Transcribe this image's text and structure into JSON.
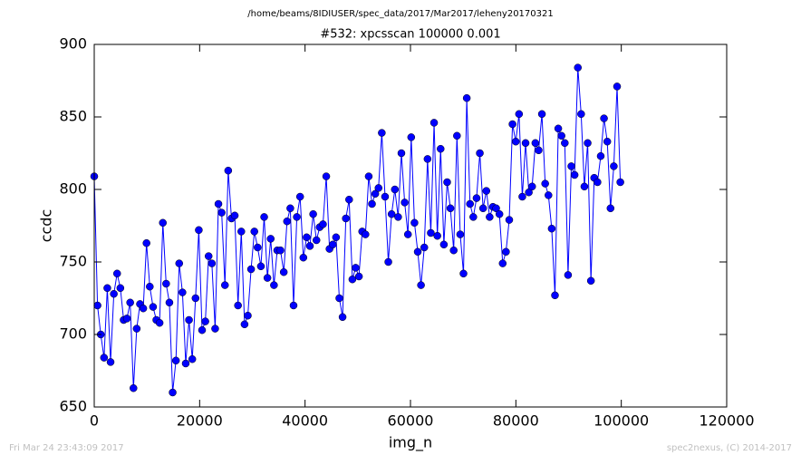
{
  "chart_data": {
    "type": "line",
    "suptitle": "/home/beams/8IDIUSER/spec_data/2017/Mar2017/leheny20170321",
    "title": "#532: xpcsscan 100000 0.001",
    "x_label": "img_n",
    "y_label": "ccdc",
    "footer_left": "Fri Mar 24 23:43:09 2017",
    "footer_right": "spec2nexus, (C) 2014-2017",
    "xlim": [
      0,
      120000
    ],
    "xticks": [
      0,
      20000,
      40000,
      60000,
      80000,
      100000,
      120000
    ],
    "ylim": [
      650,
      900
    ],
    "yticks": [
      650,
      700,
      750,
      800,
      850,
      900
    ],
    "x": [
      0,
      620,
      1240,
      1860,
      2480,
      3100,
      3720,
      4340,
      4960,
      5580,
      6200,
      6820,
      7440,
      8060,
      8680,
      9300,
      9920,
      10540,
      11160,
      11780,
      12400,
      13020,
      13640,
      14260,
      14880,
      15500,
      16120,
      16740,
      17360,
      17980,
      18600,
      19220,
      19840,
      20460,
      21080,
      21700,
      22320,
      22940,
      23560,
      24180,
      24800,
      25420,
      26040,
      26660,
      27280,
      27900,
      28520,
      29140,
      29760,
      30380,
      31000,
      31620,
      32240,
      32860,
      33480,
      34100,
      34720,
      35340,
      35960,
      36580,
      37200,
      37820,
      38440,
      39060,
      39680,
      40300,
      40920,
      41540,
      42160,
      42780,
      43400,
      44020,
      44640,
      45260,
      45880,
      46500,
      47120,
      47740,
      48360,
      48980,
      49600,
      50220,
      50840,
      51460,
      52080,
      52700,
      53320,
      53940,
      54560,
      55180,
      55800,
      56420,
      57040,
      57660,
      58280,
      58900,
      59520,
      60140,
      60760,
      61380,
      62000,
      62620,
      63240,
      63860,
      64480,
      65100,
      65720,
      66340,
      66960,
      67580,
      68200,
      68820,
      69440,
      70060,
      70680,
      71300,
      71920,
      72540,
      73160,
      73780,
      74400,
      75020,
      75640,
      76260,
      76880,
      77500,
      78120,
      78740,
      79360,
      79980,
      80600,
      81220,
      81840,
      82460,
      83080,
      83700,
      84320,
      84940,
      85560,
      86180,
      86800,
      87420,
      88040,
      88660,
      89280,
      89900,
      90520,
      91140,
      91760,
      92380,
      93000,
      93620,
      94240,
      94860,
      95480,
      96100,
      96720,
      97340,
      97960,
      98580,
      99200,
      99820
    ],
    "series": [
      {
        "color": "#0000ff",
        "values": [
          809,
          720,
          700,
          684,
          732,
          681,
          728,
          742,
          732,
          710,
          711,
          722,
          663,
          704,
          721,
          718,
          763,
          733,
          719,
          710,
          708,
          777,
          735,
          722,
          660,
          682,
          749,
          729,
          680,
          710,
          683,
          725,
          772,
          703,
          709,
          754,
          749,
          704,
          790,
          784,
          734,
          813,
          780,
          782,
          720,
          771,
          707,
          713,
          745,
          771,
          760,
          747,
          781,
          739,
          766,
          734,
          758,
          758,
          743,
          778,
          787,
          720,
          781,
          795,
          753,
          767,
          761,
          783,
          765,
          774,
          776,
          809,
          759,
          762,
          767,
          725,
          712,
          780,
          793,
          738,
          746,
          740,
          771,
          769,
          809,
          790,
          797,
          801,
          839,
          795,
          750,
          783,
          800,
          781,
          825,
          791,
          769,
          836,
          777,
          757,
          734,
          760,
          821,
          770,
          846,
          768,
          828,
          762,
          805,
          787,
          758,
          837,
          769,
          742,
          863,
          790,
          781,
          794,
          825,
          787,
          799,
          781,
          788,
          787,
          783,
          749,
          757,
          779,
          845,
          833,
          852,
          795,
          832,
          798,
          802,
          832,
          827,
          852,
          804,
          796,
          773,
          727,
          842,
          837,
          832,
          741,
          816,
          810,
          884,
          852,
          802,
          832,
          737,
          808,
          805,
          823,
          849,
          833,
          787,
          816,
          871,
          805
        ]
      }
    ]
  }
}
